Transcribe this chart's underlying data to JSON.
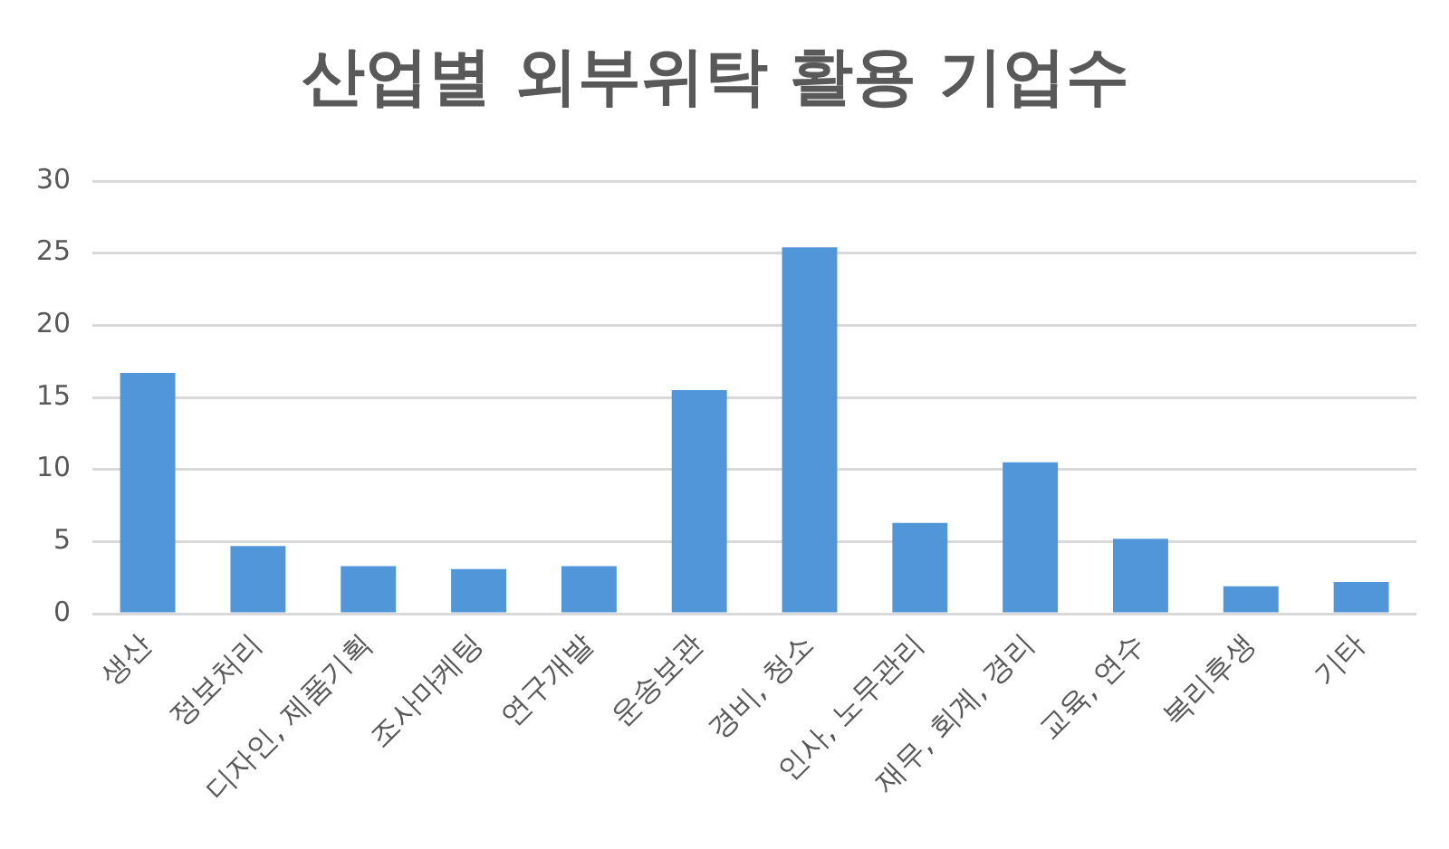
{
  "chart_data": {
    "type": "bar",
    "title": "산업별 외부위탁 활용 기업수",
    "categories": [
      "생산",
      "정보처리",
      "디자인, 제품기획",
      "조사마케팅",
      "연구개발",
      "운송보관",
      "경비, 청소",
      "인사, 노무관리",
      "재무, 회계, 경리",
      "교육, 연수",
      "복리후생",
      "기타"
    ],
    "values": [
      16.7,
      4.7,
      3.3,
      3.1,
      3.3,
      15.5,
      25.4,
      6.3,
      10.5,
      5.2,
      1.9,
      2.2
    ],
    "color": "#5096d8",
    "ylim": [
      0,
      30
    ],
    "yticks": [
      0,
      5,
      10,
      15,
      20,
      25,
      30
    ],
    "grid": "y",
    "legend": false
  }
}
